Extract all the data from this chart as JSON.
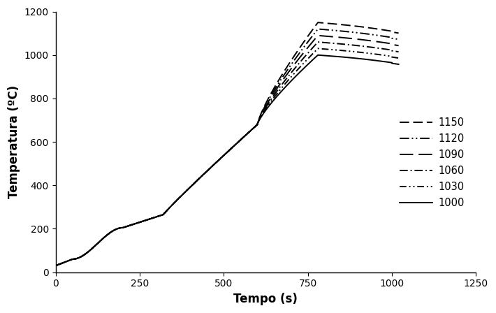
{
  "title": "",
  "xlabel": "Tempo (s)",
  "ylabel": "Temperatura (ºC)",
  "xlim": [
    0,
    1250
  ],
  "ylim": [
    0,
    1200
  ],
  "xticks": [
    0,
    250,
    500,
    750,
    1000,
    1250
  ],
  "yticks": [
    0,
    200,
    400,
    600,
    800,
    1000,
    1200
  ],
  "series": [
    {
      "label": "1150",
      "linestyle": "dashed",
      "peak_temp": 1150,
      "color": "#000000"
    },
    {
      "label": "1120",
      "linestyle": "dashdotdotdense",
      "peak_temp": 1120,
      "color": "#000000"
    },
    {
      "label": "1090",
      "linestyle": "longdash",
      "peak_temp": 1090,
      "color": "#000000"
    },
    {
      "label": "1060",
      "linestyle": "dashdot",
      "peak_temp": 1060,
      "color": "#000000"
    },
    {
      "label": "1030",
      "linestyle": "dashdotdot",
      "peak_temp": 1030,
      "color": "#000000"
    },
    {
      "label": "1000",
      "linestyle": "solid",
      "peak_temp": 1000,
      "color": "#000000"
    }
  ],
  "legend_loc": "center right",
  "linewidth": 1.4,
  "background_color": "#ffffff"
}
